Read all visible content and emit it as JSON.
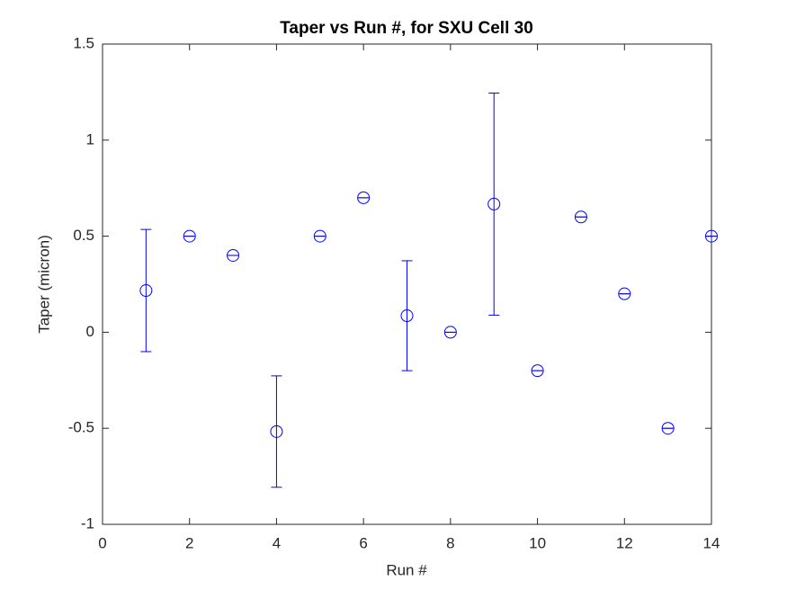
{
  "chart_data": {
    "type": "errorbar",
    "title": "Taper vs Run #, for SXU Cell 30",
    "xlabel": "Run #",
    "ylabel": "Taper (micron)",
    "x": [
      1,
      2,
      3,
      4,
      5,
      6,
      7,
      8,
      9,
      10,
      11,
      12,
      13,
      14
    ],
    "values": [
      0.217,
      0.5,
      0.4,
      -0.517,
      0.5,
      0.7,
      0.086,
      0,
      0.667,
      -0.2,
      0.6,
      0.2,
      -0.5,
      0.5
    ],
    "errors": [
      0.318,
      0,
      0,
      0.29,
      0,
      0,
      0.286,
      0,
      0.578,
      0,
      0,
      0,
      0,
      0
    ],
    "color": "#0000ff",
    "xlim": [
      0,
      14
    ],
    "xticks": [
      0,
      2,
      4,
      6,
      8,
      10,
      12,
      14
    ],
    "ylim": [
      -1,
      1.5
    ],
    "yticks": [
      -1,
      -0.5,
      0,
      0.5,
      1,
      1.5
    ],
    "grid": false,
    "box": true
  }
}
